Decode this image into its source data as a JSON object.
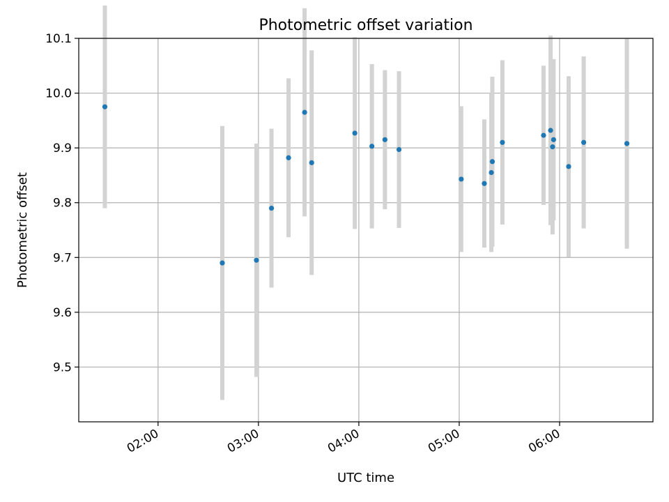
{
  "chart_data": {
    "type": "scatter",
    "title": "Photometric offset variation",
    "xlabel": "UTC time",
    "ylabel": "Photometric offset",
    "xlim_hours": [
      1.21,
      6.93
    ],
    "ylim": [
      9.4,
      10.1
    ],
    "x_ticks": [
      {
        "hour": 2,
        "label": "02:00"
      },
      {
        "hour": 3,
        "label": "03:00"
      },
      {
        "hour": 4,
        "label": "04:00"
      },
      {
        "hour": 5,
        "label": "05:00"
      },
      {
        "hour": 6,
        "label": "06:00"
      }
    ],
    "y_ticks": [
      {
        "value": 9.5,
        "label": "9.5"
      },
      {
        "value": 9.6,
        "label": "9.6"
      },
      {
        "value": 9.7,
        "label": "9.7"
      },
      {
        "value": 9.8,
        "label": "9.8"
      },
      {
        "value": 9.9,
        "label": "9.9"
      },
      {
        "value": 10.0,
        "label": "10.0"
      },
      {
        "value": 10.1,
        "label": "10.1"
      }
    ],
    "grid": true,
    "series": [
      {
        "name": "photometric offset",
        "point_color": "#1f77b4",
        "errorbar_color": "#d3d3d3",
        "points": [
          {
            "x_hour": 1.47,
            "y": 9.975,
            "err": 0.185
          },
          {
            "x_hour": 2.64,
            "y": 9.69,
            "err": 0.25
          },
          {
            "x_hour": 2.98,
            "y": 9.695,
            "err": 0.213
          },
          {
            "x_hour": 3.13,
            "y": 9.79,
            "err": 0.145
          },
          {
            "x_hour": 3.3,
            "y": 9.882,
            "err": 0.145
          },
          {
            "x_hour": 3.46,
            "y": 9.965,
            "err": 0.19
          },
          {
            "x_hour": 3.53,
            "y": 9.873,
            "err": 0.205
          },
          {
            "x_hour": 3.96,
            "y": 9.927,
            "err": 0.175
          },
          {
            "x_hour": 4.13,
            "y": 9.903,
            "err": 0.15
          },
          {
            "x_hour": 4.26,
            "y": 9.915,
            "err": 0.127
          },
          {
            "x_hour": 4.4,
            "y": 9.897,
            "err": 0.143
          },
          {
            "x_hour": 5.02,
            "y": 9.843,
            "err": 0.133
          },
          {
            "x_hour": 5.25,
            "y": 9.835,
            "err": 0.117
          },
          {
            "x_hour": 5.32,
            "y": 9.855,
            "err": 0.145
          },
          {
            "x_hour": 5.33,
            "y": 9.875,
            "err": 0.155
          },
          {
            "x_hour": 5.43,
            "y": 9.91,
            "err": 0.15
          },
          {
            "x_hour": 5.84,
            "y": 9.923,
            "err": 0.127
          },
          {
            "x_hour": 5.91,
            "y": 9.932,
            "err": 0.173
          },
          {
            "x_hour": 5.93,
            "y": 9.902,
            "err": 0.16
          },
          {
            "x_hour": 5.94,
            "y": 9.915,
            "err": 0.147
          },
          {
            "x_hour": 6.09,
            "y": 9.866,
            "err": 0.165
          },
          {
            "x_hour": 6.24,
            "y": 9.91,
            "err": 0.157
          },
          {
            "x_hour": 6.67,
            "y": 9.908,
            "err": 0.192
          }
        ]
      }
    ]
  }
}
